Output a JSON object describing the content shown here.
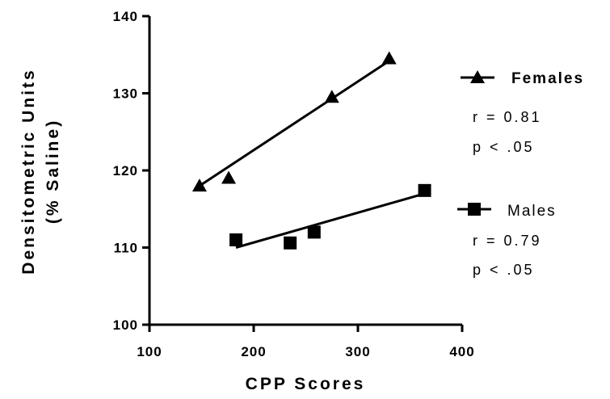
{
  "chart_data": {
    "type": "scatter",
    "xlabel": "CPP Scores",
    "ylabel": [
      "Densitometric Units",
      "(% Saline)"
    ],
    "xlim": [
      100,
      400
    ],
    "ylim": [
      100,
      140
    ],
    "xticks": [
      "100",
      "200",
      "300",
      "400"
    ],
    "yticks": [
      "100",
      "110",
      "120",
      "130",
      "140"
    ],
    "grid": false,
    "series": [
      {
        "name": "Females",
        "marker": "triangle",
        "points": [
          [
            148,
            118
          ],
          [
            176,
            119
          ],
          [
            275,
            129.5
          ],
          [
            330,
            134.5
          ]
        ],
        "fit_line": [
          [
            148,
            118
          ],
          [
            330,
            134.2
          ]
        ],
        "stats": [
          "r = 0.81",
          "p < .05"
        ]
      },
      {
        "name": "Males",
        "marker": "square",
        "points": [
          [
            183,
            111
          ],
          [
            235,
            110.6
          ],
          [
            258,
            112
          ],
          [
            364,
            117.4
          ]
        ],
        "fit_line": [
          [
            183,
            110
          ],
          [
            364,
            117
          ]
        ],
        "stats": [
          "r = 0.79",
          "p < .05"
        ]
      }
    ],
    "color": "#000000"
  }
}
